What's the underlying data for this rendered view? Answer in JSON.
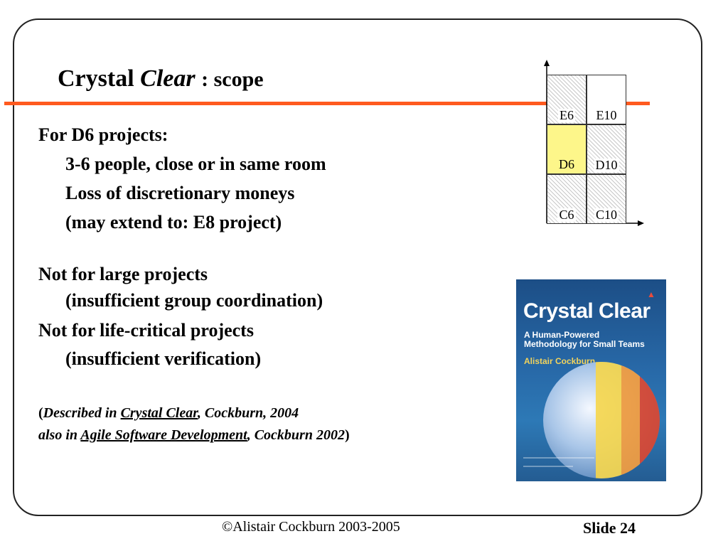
{
  "slide": {
    "title": {
      "part1": "Crystal",
      "part2": "Clear",
      "part3": ": scope"
    },
    "body": [
      "For D6 projects:",
      "3-6 people, close or in same room",
      "Loss of discretionary moneys",
      "(may extend to: E8 project)",
      "Not for large projects",
      "(insufficient group coordination)",
      "Not for life-critical projects",
      "(insufficient verification)"
    ],
    "citation": {
      "line1_a": "(",
      "line1_b": "Described in ",
      "line1_book": "Crystal Clear",
      "line1_c": ", Cockburn, 2004",
      "line2_a": "also in ",
      "line2_book": "Agile Software Development",
      "line2_c": ", Cockburn 2002",
      "line2_d": ")"
    },
    "grid": {
      "cells": [
        "E6",
        "E10",
        "D6",
        "D10",
        "C6",
        "C10"
      ]
    },
    "book": {
      "title": "Crystal Clear",
      "subtitle1": "A Human-Powered",
      "subtitle2": "Methodology for Small Teams",
      "author": "Alistair Cockburn"
    },
    "footer": {
      "copyright": "©Alistair Cockburn 2003-2005",
      "slide_label": "Slide 24"
    },
    "colors": {
      "rule": "#ff5a1f",
      "highlight": "#fdf68a"
    }
  }
}
